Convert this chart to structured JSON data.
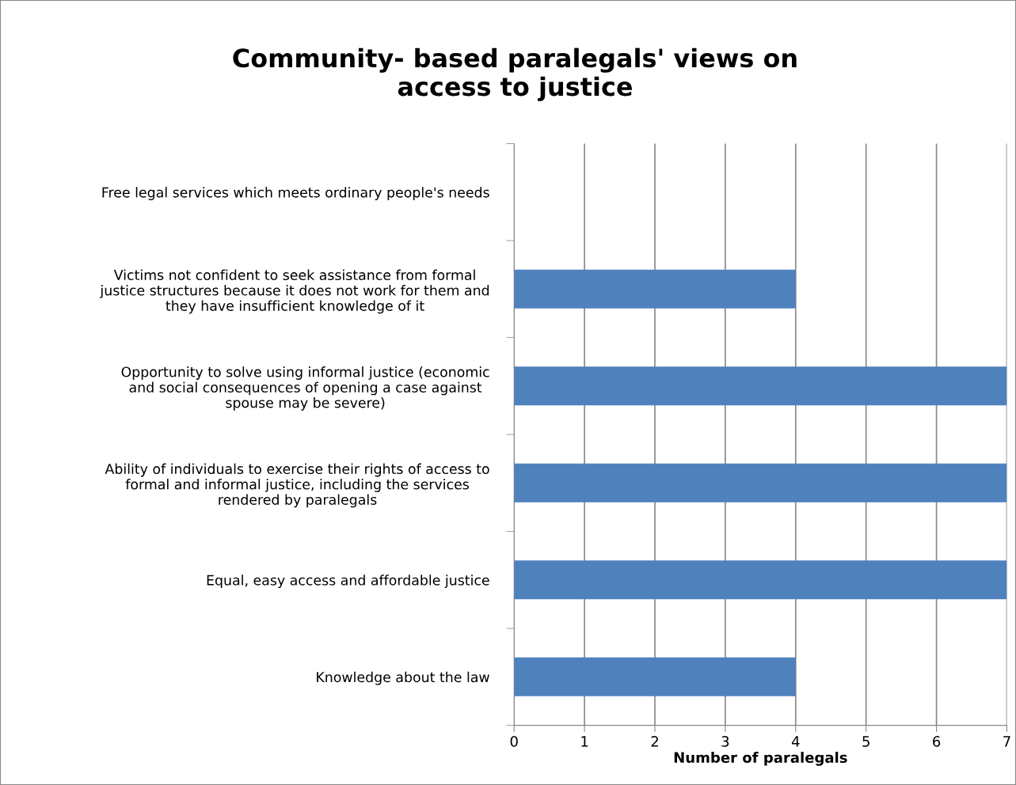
{
  "chart_data": {
    "type": "bar",
    "orientation": "horizontal",
    "title": "Community- based paralegals' views on\naccess to justice",
    "xlabel": "Number of paralegals",
    "categories": [
      "Free legal services which meets ordinary people's needs",
      "Victims not confident to seek assistance from formal\njustice structures because it does not work for them and\nthey have insufficient knowledge of it",
      "Opportunity to solve using informal justice (economic\nand social consequences of opening a case against\nspouse may be severe)",
      "Ability of individuals to exercise their rights of access to\nformal and informal justice, including the services\nrendered by paralegals",
      "Equal, easy access and affordable justice",
      "Knowledge about the law"
    ],
    "values": [
      0,
      4,
      7,
      7,
      7,
      4
    ],
    "color": "#4f81bd",
    "xlim": [
      0,
      7
    ],
    "xticks": [
      0,
      1,
      2,
      3,
      4,
      5,
      6,
      7
    ],
    "grid": "x",
    "legend": false
  }
}
